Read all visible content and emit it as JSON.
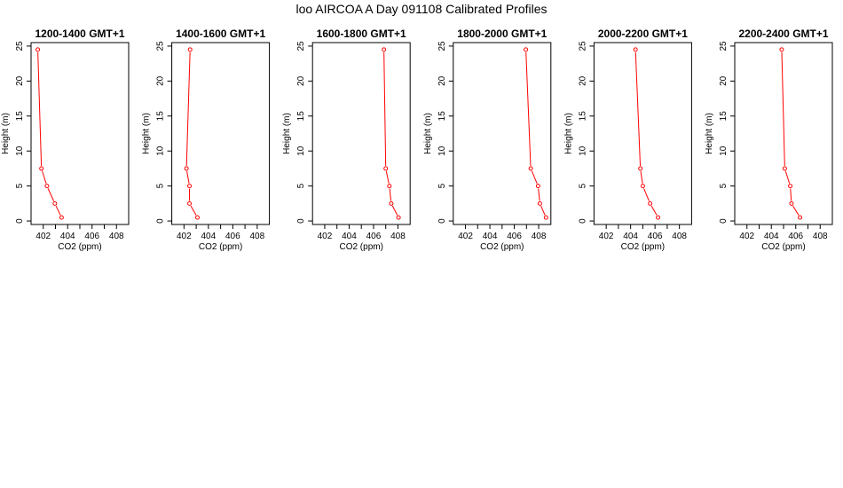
{
  "title": "loo AIRCOA A  Day 091108  Calibrated Profiles",
  "colors": {
    "line": "#ff0000",
    "axis": "#000000",
    "background": "#ffffff"
  },
  "chart_data": [
    {
      "type": "line",
      "title": "1200-1400 GMT+1",
      "xlabel": "CO2 (ppm)",
      "ylabel": "Height (m)",
      "xlim": [
        401,
        409
      ],
      "ylim": [
        -0.5,
        25.5
      ],
      "xticks": [
        402,
        403,
        404,
        405,
        406,
        407,
        408
      ],
      "xticklabels": [
        "402",
        "",
        "404",
        "",
        "406",
        "",
        "408"
      ],
      "yticks": [
        0,
        5,
        10,
        15,
        20,
        25
      ],
      "yticklabels": [
        "0",
        "5",
        "10",
        "15",
        "20",
        "25"
      ],
      "grid": false,
      "series": [
        {
          "points": [
            [
              401.55,
              24.5
            ],
            [
              401.85,
              7.5
            ],
            [
              402.3,
              5.0
            ],
            [
              402.95,
              2.5
            ],
            [
              403.5,
              0.5
            ]
          ]
        }
      ]
    },
    {
      "type": "line",
      "title": "1400-1600 GMT+1",
      "xlabel": "CO2 (ppm)",
      "ylabel": "Height (m)",
      "xlim": [
        401,
        409
      ],
      "ylim": [
        -0.5,
        25.5
      ],
      "xticks": [
        402,
        403,
        404,
        405,
        406,
        407,
        408
      ],
      "xticklabels": [
        "402",
        "",
        "404",
        "",
        "406",
        "",
        "408"
      ],
      "yticks": [
        0,
        5,
        10,
        15,
        20,
        25
      ],
      "yticklabels": [
        "0",
        "5",
        "10",
        "15",
        "20",
        "25"
      ],
      "grid": false,
      "series": [
        {
          "points": [
            [
              402.5,
              24.5
            ],
            [
              402.2,
              7.5
            ],
            [
              402.45,
              5.0
            ],
            [
              402.45,
              2.5
            ],
            [
              403.1,
              0.5
            ]
          ]
        }
      ]
    },
    {
      "type": "line",
      "title": "1600-1800 GMT+1",
      "xlabel": "CO2 (ppm)",
      "ylabel": "Height (m)",
      "xlim": [
        401,
        409
      ],
      "ylim": [
        -0.5,
        25.5
      ],
      "xticks": [
        402,
        403,
        404,
        405,
        406,
        407,
        408
      ],
      "xticklabels": [
        "402",
        "",
        "404",
        "",
        "406",
        "",
        "408"
      ],
      "yticks": [
        0,
        5,
        10,
        15,
        20,
        25
      ],
      "yticklabels": [
        "0",
        "5",
        "10",
        "15",
        "20",
        "25"
      ],
      "grid": false,
      "series": [
        {
          "points": [
            [
              406.85,
              24.5
            ],
            [
              407.0,
              7.5
            ],
            [
              407.3,
              5.0
            ],
            [
              407.45,
              2.5
            ],
            [
              408.05,
              0.5
            ]
          ]
        }
      ]
    },
    {
      "type": "line",
      "title": "1800-2000 GMT+1",
      "xlabel": "CO2 (ppm)",
      "ylabel": "Height (m)",
      "xlim": [
        401,
        409
      ],
      "ylim": [
        -0.5,
        25.5
      ],
      "xticks": [
        402,
        403,
        404,
        405,
        406,
        407,
        408
      ],
      "xticklabels": [
        "402",
        "",
        "404",
        "",
        "406",
        "",
        "408"
      ],
      "yticks": [
        0,
        5,
        10,
        15,
        20,
        25
      ],
      "yticklabels": [
        "0",
        "5",
        "10",
        "15",
        "20",
        "25"
      ],
      "grid": false,
      "series": [
        {
          "points": [
            [
              406.95,
              24.5
            ],
            [
              407.35,
              7.5
            ],
            [
              407.95,
              5.0
            ],
            [
              408.1,
              2.5
            ],
            [
              408.6,
              0.5
            ]
          ]
        }
      ]
    },
    {
      "type": "line",
      "title": "2000-2200 GMT+1",
      "xlabel": "CO2 (ppm)",
      "ylabel": "Height (m)",
      "xlim": [
        401,
        409
      ],
      "ylim": [
        -0.5,
        25.5
      ],
      "xticks": [
        402,
        403,
        404,
        405,
        406,
        407,
        408
      ],
      "xticklabels": [
        "402",
        "",
        "404",
        "",
        "406",
        "",
        "408"
      ],
      "yticks": [
        0,
        5,
        10,
        15,
        20,
        25
      ],
      "yticklabels": [
        "0",
        "5",
        "10",
        "15",
        "20",
        "25"
      ],
      "grid": false,
      "series": [
        {
          "points": [
            [
              404.4,
              24.5
            ],
            [
              404.8,
              7.5
            ],
            [
              405.0,
              5.0
            ],
            [
              405.6,
              2.5
            ],
            [
              406.25,
              0.5
            ]
          ]
        }
      ]
    },
    {
      "type": "line",
      "title": "2200-2400 GMT+1",
      "xlabel": "CO2 (ppm)",
      "ylabel": "Height (m)",
      "xlim": [
        401,
        409
      ],
      "ylim": [
        -0.5,
        25.5
      ],
      "xticks": [
        402,
        403,
        404,
        405,
        406,
        407,
        408
      ],
      "xticklabels": [
        "402",
        "",
        "404",
        "",
        "406",
        "",
        "408"
      ],
      "yticks": [
        0,
        5,
        10,
        15,
        20,
        25
      ],
      "yticklabels": [
        "0",
        "5",
        "10",
        "15",
        "20",
        "25"
      ],
      "grid": false,
      "series": [
        {
          "points": [
            [
              404.85,
              24.5
            ],
            [
              405.1,
              7.5
            ],
            [
              405.55,
              5.0
            ],
            [
              405.65,
              2.5
            ],
            [
              406.35,
              0.5
            ]
          ]
        }
      ]
    }
  ]
}
